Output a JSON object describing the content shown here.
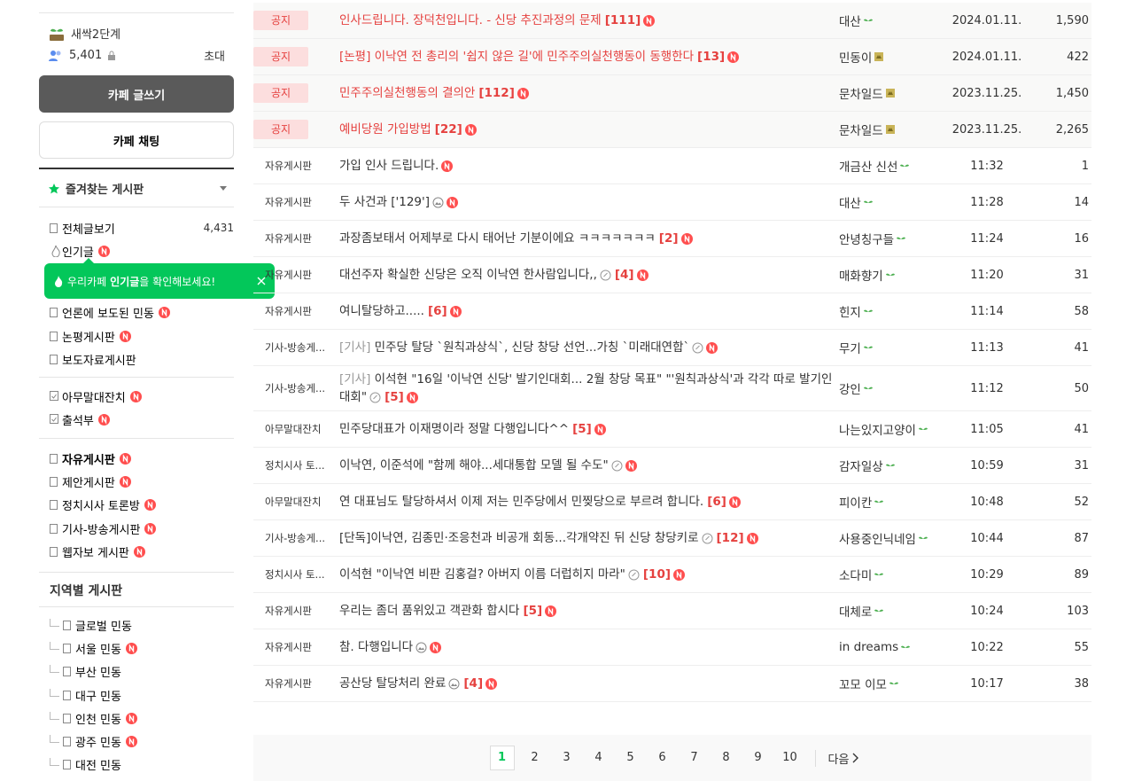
{
  "sidebar": {
    "level": "새싹2단계",
    "members": "5,401",
    "invite": "초대",
    "write_button": "카페 글쓰기",
    "chat_button": "카페 채팅",
    "favorites": "즐겨찾는 게시판",
    "groups": [
      [
        {
          "name": "전체글보기",
          "count": "4,431"
        },
        {
          "name": "인기글",
          "new": true,
          "icon": "fire"
        },
        {
          "name": "언론에 보도된 민동",
          "new": true
        },
        {
          "name": "논평게시판",
          "new": true
        },
        {
          "name": "보도자료게시판"
        }
      ],
      [
        {
          "name": "아무말대잔치",
          "new": true,
          "icon": "check"
        },
        {
          "name": "출석부",
          "new": true,
          "icon": "check"
        }
      ],
      [
        {
          "name": "자유게시판",
          "new": true,
          "bold": true
        },
        {
          "name": "제안게시판",
          "new": true
        },
        {
          "name": "정치시사 토론방",
          "new": true
        },
        {
          "name": "기사-방송게시판",
          "new": true
        },
        {
          "name": "웹자보 게시판",
          "new": true
        }
      ]
    ],
    "tooltip": [
      "우리카페",
      "인기글",
      "을 확인해보세요!"
    ],
    "region_title": "지역별 게시판",
    "regions": [
      {
        "name": "글로벌 민동"
      },
      {
        "name": "서울 민동",
        "new": true
      },
      {
        "name": "부산 민동"
      },
      {
        "name": "대구 민동"
      },
      {
        "name": "인천 민동",
        "new": true
      },
      {
        "name": "광주 민동",
        "new": true
      },
      {
        "name": "대전 민동"
      }
    ]
  },
  "notice_label": "공지",
  "notices": [
    {
      "title": "인사드립니다. 장덕천입니다. - 신당 추진과정의 문제",
      "comments": "[111]",
      "author": "대산",
      "date": "2024.01.11.",
      "views": "1,590"
    },
    {
      "title": "[논평] 이낙연 전 총리의 '쉽지 않은 길'에 민주주의실천행동이 동행한다",
      "comments": "[13]",
      "author": "민동이",
      "badge": "manager",
      "date": "2024.01.11.",
      "views": "422"
    },
    {
      "title": "민주주의실천행동의 결의안",
      "comments": "[112]",
      "author": "문차일드",
      "badge": "manager",
      "date": "2023.11.25.",
      "views": "1,450"
    },
    {
      "title": "예비당원 가입방법",
      "comments": "[22]",
      "author": "문차일드",
      "badge": "manager",
      "date": "2023.11.25.",
      "views": "2,265"
    }
  ],
  "posts": [
    {
      "board": "자유게시판",
      "title": "가입 인사 드립니다.",
      "author": "개금산 신선",
      "time": "11:32",
      "views": "1"
    },
    {
      "board": "자유게시판",
      "title": "두 사건과 ['129']",
      "icon": "image",
      "author": "대산",
      "time": "11:28",
      "views": "14"
    },
    {
      "board": "자유게시판",
      "title": "과장좀보태서 어제부로 다시 태어난 기분이에요 ㅋㅋㅋㅋㅋㅋㅋ",
      "comments": "[2]",
      "author": "안녕칭구들",
      "time": "11:24",
      "views": "16"
    },
    {
      "board": "자유게시판",
      "title": "대선주자 확실한 신당은 오직 이낙연 한사람입니다,,",
      "icon": "attach",
      "comments": "[4]",
      "author": "매화향기",
      "time": "11:20",
      "views": "31"
    },
    {
      "board": "자유게시판",
      "title": "여니탈당하고.....",
      "comments": "[6]",
      "author": "힌지",
      "time": "11:14",
      "views": "58"
    },
    {
      "board": "기사-방송게...",
      "prefix": "[기사]",
      "title": "민주당 탈당 `원칙과상식`, 신당 창당 선언...가칭 `미래대연합`",
      "icon": "attach",
      "author": "무기",
      "time": "11:13",
      "views": "41"
    },
    {
      "board": "기사-방송게...",
      "prefix": "[기사]",
      "title": "이석현 \"16일 '이낙연 신당' 발기인대회... 2월 창당 목표\" \"'원칙과상식'과 각각 따로 발기인 대회\"",
      "icon": "attach",
      "comments": "[5]",
      "author": "강인",
      "time": "11:12",
      "views": "50"
    },
    {
      "board": "아무말대잔치",
      "title": "민주당대표가 이재명이라 정말 다행입니다^^",
      "comments": "[5]",
      "author": "나는있지고양이",
      "time": "11:05",
      "views": "41"
    },
    {
      "board": "정치시사 토...",
      "title": "이낙연, 이준석에 \"함께 해야...세대통합 모델 될 수도\"",
      "icon": "attach",
      "author": "감자일상",
      "time": "10:59",
      "views": "31"
    },
    {
      "board": "아무말대잔치",
      "title": "연 대표님도 탈당하셔서 이제 저는 민주당에서 민찢당으로 부르려 합니다.",
      "comments": "[6]",
      "author": "피이칸",
      "time": "10:48",
      "views": "52"
    },
    {
      "board": "기사-방송게...",
      "title": "[단독]이낙연, 김종민·조응천과 비공개 회동...각개약진 뒤 신당 창당키로",
      "icon": "attach",
      "comments": "[12]",
      "author": "사용중인닉네임",
      "time": "10:44",
      "views": "87"
    },
    {
      "board": "정치시사 토...",
      "title": "이석현 \"이낙연 비판 김홍걸? 아버지 이름 더럽히지 마라\"",
      "icon": "attach",
      "comments": "[10]",
      "author": "소다미",
      "time": "10:29",
      "views": "89"
    },
    {
      "board": "자유게시판",
      "title": "우리는 좀더 품위있고 객관화 합시다",
      "comments": "[5]",
      "author": "대체로",
      "time": "10:24",
      "views": "103"
    },
    {
      "board": "자유게시판",
      "title": "참. 다행입니다",
      "icon": "image",
      "author": "in dreams",
      "time": "10:22",
      "views": "55"
    },
    {
      "board": "자유게시판",
      "title": "공산당 탈당처리 완료",
      "icon": "image",
      "comments": "[4]",
      "author": "꼬모 이모",
      "time": "10:17",
      "views": "38"
    }
  ],
  "pagination": {
    "pages": [
      1,
      2,
      3,
      4,
      5,
      6,
      7,
      8,
      9,
      10
    ],
    "current": 1,
    "next": "다음"
  }
}
